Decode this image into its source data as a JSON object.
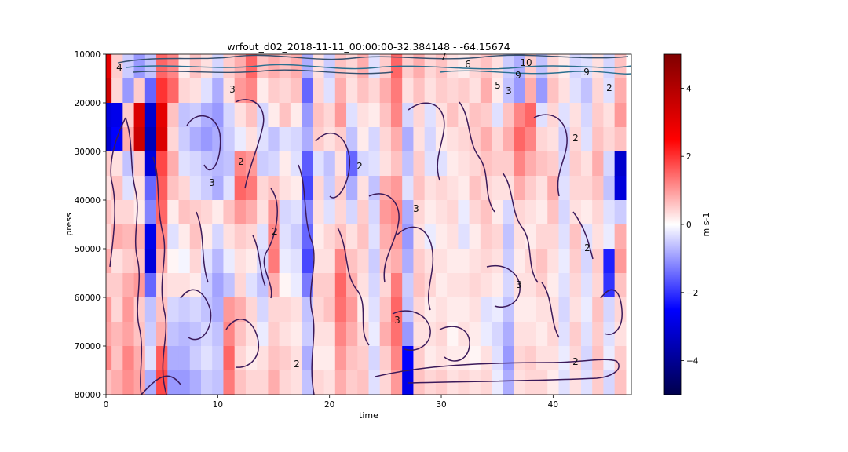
{
  "chart_data": {
    "type": "heatmap",
    "title": "wrfout_d02_2018-11-11_00:00:00-32.384148 - -64.15674",
    "xlabel": "time",
    "ylabel": "press",
    "xlim": [
      0,
      47
    ],
    "ylim": [
      80000,
      10000
    ],
    "xticks": [
      "0",
      "10",
      "20",
      "30",
      "40"
    ],
    "xtick_values": [
      0,
      10,
      20,
      30,
      40
    ],
    "yticks": [
      "10000",
      "20000",
      "30000",
      "40000",
      "50000",
      "60000",
      "70000",
      "80000"
    ],
    "ytick_values": [
      10000,
      20000,
      30000,
      40000,
      50000,
      60000,
      70000,
      80000
    ],
    "colorbar": {
      "label": "m s-1",
      "range": [
        -5,
        5
      ],
      "colormap": "seismic",
      "ticks": [
        "4",
        "2",
        "0",
        "−2",
        "−4"
      ],
      "tick_values": [
        4,
        2,
        0,
        -2,
        -4
      ]
    },
    "contour_labels": [
      "10",
      "9",
      "7",
      "6",
      "5",
      "4",
      "3",
      "2"
    ],
    "columns": [
      {
        "t": 0,
        "v": [
          3.0,
          3.5,
          -3.0,
          -3.2,
          0.5,
          0.3,
          0.6,
          0.4,
          0.8,
          0.5,
          1.0,
          0.9,
          1.2,
          0.6
        ]
      },
      {
        "t": 1,
        "v": [
          0.5,
          0.4,
          -2.8,
          -2.5,
          0.3,
          0.6,
          0.4,
          0.8,
          0.3,
          0.5,
          0.4,
          0.7,
          0.6,
          0.8
        ]
      },
      {
        "t": 2,
        "v": [
          -0.5,
          -1.0,
          0.5,
          0.8,
          -0.6,
          -0.3,
          0.4,
          0.7,
          0.5,
          0.8,
          1.0,
          0.9,
          1.2,
          1.1
        ]
      },
      {
        "t": 3,
        "v": [
          -1.0,
          0.5,
          3.2,
          3.5,
          0.5,
          0.3,
          0.2,
          0.8,
          0.6,
          1.0,
          0.5,
          0.6,
          0.8,
          0.9
        ]
      },
      {
        "t": 4,
        "v": [
          -0.6,
          -1.5,
          -3.2,
          -3.5,
          -3.0,
          -1.5,
          -1.2,
          -2.8,
          -3.0,
          -1.5,
          -0.6,
          -0.5,
          -0.3,
          -0.8
        ]
      },
      {
        "t": 5,
        "v": [
          1.5,
          2.0,
          3.0,
          3.2,
          1.8,
          1.6,
          1.5,
          1.2,
          0.8,
          0.4,
          0.6,
          0.8,
          1.6,
          1.8
        ]
      },
      {
        "t": 6,
        "v": [
          1.2,
          1.5,
          0.6,
          0.4,
          0.8,
          0.6,
          0.2,
          -0.3,
          0.1,
          0.3,
          -0.4,
          -0.6,
          -0.8,
          -1.0
        ]
      },
      {
        "t": 7,
        "v": [
          0.2,
          0.4,
          -0.6,
          -0.5,
          -0.3,
          0.4,
          0.6,
          0.2,
          -0.1,
          0.3,
          -0.5,
          -0.7,
          -0.8,
          -1.0
        ]
      },
      {
        "t": 8,
        "v": [
          0.6,
          0.3,
          -0.5,
          -0.8,
          -0.4,
          -0.3,
          0.5,
          0.6,
          0.4,
          0.2,
          -0.4,
          -0.6,
          -0.5,
          -0.8
        ]
      },
      {
        "t": 9,
        "v": [
          0.3,
          -0.3,
          -0.8,
          -1.0,
          -0.6,
          -0.5,
          0.4,
          0.2,
          -0.3,
          -0.5,
          -0.6,
          -0.4,
          -0.3,
          -0.5
        ]
      },
      {
        "t": 10,
        "v": [
          -0.4,
          -0.8,
          -1.0,
          -0.8,
          -0.7,
          -0.8,
          0.2,
          -0.4,
          -0.7,
          -0.9,
          -0.8,
          -0.6,
          -0.5,
          -0.6
        ]
      },
      {
        "t": 11,
        "v": [
          0.5,
          0.3,
          -0.4,
          -0.5,
          -0.6,
          -0.3,
          0.6,
          0.3,
          -0.2,
          -0.6,
          1.0,
          1.2,
          1.5,
          1.3
        ]
      },
      {
        "t": 12,
        "v": [
          0.8,
          1.0,
          0.3,
          -0.2,
          1.2,
          1.5,
          1.0,
          0.5,
          0.3,
          0.4,
          0.8,
          0.6,
          0.4,
          0.6
        ]
      },
      {
        "t": 13,
        "v": [
          1.5,
          1.2,
          0.6,
          0.3,
          1.0,
          1.3,
          0.8,
          0.4,
          0.2,
          -0.3,
          0.4,
          0.3,
          0.2,
          0.4
        ]
      },
      {
        "t": 14,
        "v": [
          0.6,
          0.2,
          -0.4,
          -0.3,
          -0.5,
          0.4,
          0.3,
          -0.3,
          -0.4,
          -0.6,
          -0.4,
          -0.2,
          0.3,
          0.4
        ]
      },
      {
        "t": 15,
        "v": [
          0.8,
          0.5,
          0.2,
          -0.6,
          -0.4,
          0.6,
          1.0,
          1.2,
          1.3,
          0.8,
          0.4,
          0.5,
          0.6,
          0.8
        ]
      },
      {
        "t": 16,
        "v": [
          0.6,
          0.4,
          0.6,
          -0.3,
          0.2,
          0.3,
          -0.4,
          -0.3,
          -0.2,
          0.1,
          0.4,
          0.3,
          0.5,
          0.4
        ]
      },
      {
        "t": 17,
        "v": [
          0.8,
          0.6,
          0.2,
          -0.4,
          -0.3,
          0.2,
          -0.3,
          -0.5,
          -0.3,
          -0.2,
          0.3,
          0.2,
          0.3,
          0.3
        ]
      },
      {
        "t": 18,
        "v": [
          -0.8,
          -1.5,
          -1.0,
          -0.8,
          -1.6,
          -1.8,
          -1.2,
          -1.5,
          -1.8,
          -1.3,
          -0.6,
          -0.5,
          -0.8,
          -0.6
        ]
      },
      {
        "t": 19,
        "v": [
          0.3,
          0.4,
          0.6,
          0.5,
          -0.3,
          0.4,
          0.3,
          0.2,
          0.3,
          0.5,
          0.4,
          0.3,
          0.2,
          0.4
        ]
      },
      {
        "t": 20,
        "v": [
          -0.5,
          -0.3,
          0.4,
          0.3,
          -0.6,
          -0.5,
          -0.3,
          0.4,
          0.3,
          0.5,
          0.6,
          0.3,
          0.2,
          0.3
        ]
      },
      {
        "t": 21,
        "v": [
          0.6,
          0.8,
          1.0,
          0.5,
          0.3,
          0.5,
          0.4,
          0.6,
          1.2,
          1.5,
          1.4,
          1.2,
          1.0,
          0.8
        ]
      },
      {
        "t": 22,
        "v": [
          0.4,
          0.3,
          -0.3,
          -0.6,
          -1.5,
          -0.8,
          -0.4,
          0.3,
          0.6,
          0.8,
          1.0,
          0.8,
          0.6,
          0.5
        ]
      },
      {
        "t": 23,
        "v": [
          0.8,
          0.6,
          0.3,
          0.2,
          -0.4,
          0.3,
          0.5,
          0.6,
          0.4,
          0.3,
          0.2,
          0.4,
          0.5,
          0.6
        ]
      },
      {
        "t": 24,
        "v": [
          -0.3,
          0.4,
          0.2,
          -0.4,
          -0.3,
          -0.6,
          -0.4,
          -0.3,
          -0.5,
          -0.4,
          -0.3,
          -0.2,
          -0.4,
          -0.3
        ]
      },
      {
        "t": 25,
        "v": [
          0.5,
          0.8,
          0.6,
          0.4,
          0.3,
          0.8,
          1.0,
          0.8,
          0.6,
          0.4,
          0.6,
          0.8,
          0.5,
          0.4
        ]
      },
      {
        "t": 26,
        "v": [
          1.5,
          1.3,
          1.2,
          0.8,
          0.6,
          1.0,
          1.2,
          1.0,
          0.8,
          1.3,
          1.5,
          1.4,
          1.2,
          1.0
        ]
      },
      {
        "t": 27,
        "v": [
          0.5,
          0.3,
          -0.4,
          -0.8,
          -0.6,
          -0.3,
          -0.8,
          -1.0,
          -0.8,
          -0.5,
          -0.6,
          -1.0,
          -2.5,
          -2.8
        ]
      },
      {
        "t": 28,
        "v": [
          0.8,
          0.6,
          0.4,
          0.3,
          0.5,
          0.6,
          0.4,
          0.3,
          0.5,
          0.6,
          0.4,
          0.3,
          0.5,
          0.6
        ]
      },
      {
        "t": 29,
        "v": [
          0.4,
          0.3,
          -0.3,
          -0.4,
          -0.3,
          0.3,
          0.2,
          -0.2,
          0.3,
          0.4,
          0.2,
          0.3,
          0.2,
          0.4
        ]
      },
      {
        "t": 30,
        "v": [
          0.6,
          0.5,
          0.3,
          0.2,
          -0.3,
          0.4,
          0.3,
          0.2,
          0.3,
          0.2,
          0.3,
          0.4,
          0.3,
          0.5
        ]
      },
      {
        "t": 31,
        "v": [
          0.3,
          0.4,
          0.6,
          0.3,
          0.2,
          0.3,
          0.4,
          0.3,
          0.2,
          0.3,
          0.2,
          0.1,
          0.2,
          0.3
        ]
      },
      {
        "t": 32,
        "v": [
          0.2,
          0.5,
          0.3,
          0.4,
          0.3,
          0.2,
          -0.2,
          -0.3,
          0.2,
          0.3,
          0.2,
          0.3,
          0.2,
          0.4
        ]
      },
      {
        "t": 33,
        "v": [
          0.4,
          0.3,
          0.6,
          0.5,
          0.4,
          0.6,
          0.4,
          0.2,
          0.3,
          0.4,
          0.3,
          0.2,
          0.1,
          0.3
        ]
      },
      {
        "t": 34,
        "v": [
          0.6,
          0.8,
          0.5,
          0.8,
          0.6,
          0.4,
          0.6,
          0.5,
          0.4,
          0.3,
          -0.3,
          -0.2,
          0.3,
          0.4
        ]
      },
      {
        "t": 35,
        "v": [
          0.3,
          0.2,
          -0.3,
          0.4,
          0.5,
          0.3,
          0.2,
          0.4,
          0.3,
          0.2,
          -0.2,
          -0.4,
          -0.3,
          -0.2
        ]
      },
      {
        "t": 36,
        "v": [
          -0.5,
          -0.6,
          0.6,
          0.8,
          0.5,
          0.3,
          -0.4,
          -0.6,
          -0.5,
          -0.4,
          -0.6,
          -0.8,
          -1.0,
          -0.8
        ]
      },
      {
        "t": 37,
        "v": [
          -0.8,
          -1.0,
          1.2,
          1.5,
          1.2,
          0.8,
          0.4,
          0.3,
          0.2,
          0.3,
          0.2,
          0.3,
          0.4,
          0.3
        ]
      },
      {
        "t": 38,
        "v": [
          0.5,
          0.8,
          1.5,
          1.2,
          0.8,
          0.5,
          0.3,
          0.2,
          0.4,
          0.3,
          0.2,
          0.3,
          0.5,
          0.4
        ]
      },
      {
        "t": 39,
        "v": [
          -0.6,
          -1.0,
          -0.3,
          0.4,
          0.6,
          0.3,
          0.2,
          0.4,
          0.6,
          0.5,
          0.3,
          0.2,
          0.3,
          0.4
        ]
      },
      {
        "t": 40,
        "v": [
          0.4,
          0.6,
          0.4,
          0.3,
          0.5,
          0.8,
          0.6,
          0.4,
          0.3,
          0.2,
          0.3,
          0.4,
          0.3,
          0.2
        ]
      },
      {
        "t": 41,
        "v": [
          0.2,
          0.3,
          -0.3,
          -0.5,
          -0.4,
          -0.3,
          -0.4,
          -0.3,
          -0.2,
          -0.3,
          -0.4,
          -0.3,
          -0.2,
          -0.3
        ]
      },
      {
        "t": 42,
        "v": [
          -0.4,
          -0.3,
          0.3,
          0.4,
          0.5,
          0.4,
          0.3,
          0.6,
          0.5,
          0.4,
          0.3,
          0.5,
          0.4,
          0.3
        ]
      },
      {
        "t": 43,
        "v": [
          -0.3,
          -0.6,
          -0.4,
          -0.3,
          0.3,
          0.4,
          0.2,
          -0.3,
          -0.4,
          -0.3,
          -0.2,
          -0.3,
          -0.4,
          -0.3
        ]
      },
      {
        "t": 44,
        "v": [
          0.3,
          0.4,
          0.5,
          0.6,
          0.8,
          0.6,
          0.4,
          0.3,
          0.5,
          0.4,
          0.6,
          0.5,
          0.6,
          0.5
        ]
      },
      {
        "t": 45,
        "v": [
          -0.4,
          -0.3,
          0.3,
          0.4,
          -0.4,
          -0.6,
          -0.3,
          -0.2,
          -2.2,
          -2.0,
          -0.4,
          -0.3,
          -0.2,
          -0.4
        ]
      },
      {
        "t": 46,
        "v": [
          0.6,
          0.8,
          1.0,
          0.6,
          -3.2,
          -3.0,
          -0.5,
          0.8,
          1.0,
          0.6,
          0.4,
          0.3,
          0.5,
          0.6
        ]
      }
    ]
  }
}
